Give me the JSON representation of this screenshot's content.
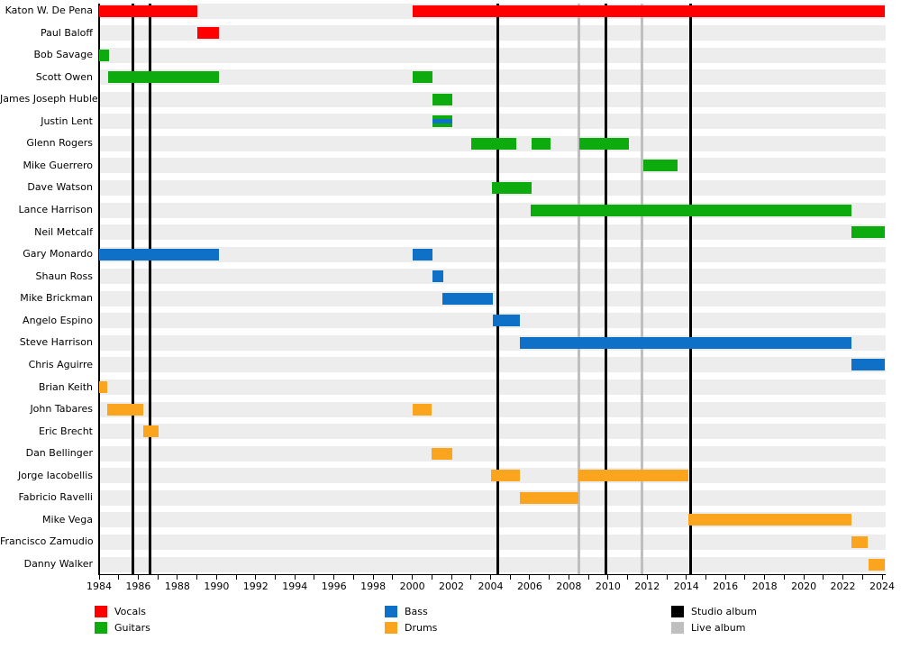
{
  "chart_data": {
    "type": "timeline",
    "title": "",
    "x_axis": {
      "start": 1984,
      "end": 2024.12,
      "tick_every_years": 1,
      "label_every_years": 2,
      "tick_labels": [
        "1984",
        "1986",
        "1988",
        "1990",
        "1992",
        "1994",
        "1996",
        "1998",
        "2000",
        "2002",
        "2004",
        "2006",
        "2008",
        "2010",
        "2012",
        "2014",
        "2016",
        "2018",
        "2020",
        "2022",
        "2024"
      ]
    },
    "colors": {
      "vocals": "#fe0000",
      "guitars": "#0dab0d",
      "bass": "#0f70c8",
      "drums": "#fba51f",
      "studio_album": "#000000",
      "live_album": "#bfbfbf",
      "row_band": "#ededed"
    },
    "legend": [
      {
        "label": "Vocals",
        "color_key": "vocals"
      },
      {
        "label": "Guitars",
        "color_key": "guitars"
      },
      {
        "label": "Bass",
        "color_key": "bass"
      },
      {
        "label": "Drums",
        "color_key": "drums"
      },
      {
        "label": "Studio album",
        "color_key": "studio_album"
      },
      {
        "label": "Live album",
        "color_key": "live_album"
      }
    ],
    "album_lines": {
      "studio": [
        1985.72,
        1986.58,
        2004.38,
        2009.9,
        2014.22
      ],
      "live": [
        2008.53,
        2011.72
      ]
    },
    "members": [
      {
        "name": "Katon W. De Pena",
        "roles": [
          "vocals"
        ],
        "bars": [
          [
            1984,
            1989
          ],
          [
            2000,
            2024.12
          ]
        ]
      },
      {
        "name": "Paul Baloff",
        "roles": [
          "vocals"
        ],
        "bars": [
          [
            1989,
            1990.1
          ]
        ]
      },
      {
        "name": "Bob Savage",
        "roles": [
          "guitars"
        ],
        "bars": [
          [
            1984,
            1984.5
          ]
        ]
      },
      {
        "name": "Scott Owen",
        "roles": [
          "guitars"
        ],
        "bars": [
          [
            1984.45,
            1990.1
          ],
          [
            2000,
            2001.05
          ]
        ]
      },
      {
        "name": "James Joseph Hubler",
        "roles": [
          "guitars"
        ],
        "bars": [
          [
            2001.05,
            2002.05
          ]
        ]
      },
      {
        "name": "Justin Lent",
        "roles": [
          "guitars",
          "bass"
        ],
        "bars": [
          [
            2001.05,
            2002.05
          ]
        ]
      },
      {
        "name": "Glenn Rogers",
        "roles": [
          "guitars"
        ],
        "bars": [
          [
            2003,
            2005.3
          ],
          [
            2006.1,
            2007.05
          ],
          [
            2008.55,
            2011.05
          ]
        ]
      },
      {
        "name": "Mike Guerrero",
        "roles": [
          "guitars"
        ],
        "bars": [
          [
            2011.8,
            2013.55
          ]
        ]
      },
      {
        "name": "Dave Watson",
        "roles": [
          "guitars"
        ],
        "bars": [
          [
            2004.05,
            2006.1
          ]
        ]
      },
      {
        "name": "Lance Harrison",
        "roles": [
          "guitars"
        ],
        "bars": [
          [
            2006.05,
            2022.45
          ]
        ]
      },
      {
        "name": "Neil Metcalf",
        "roles": [
          "guitars"
        ],
        "bars": [
          [
            2022.45,
            2024.12
          ]
        ]
      },
      {
        "name": "Gary Monardo",
        "roles": [
          "bass"
        ],
        "bars": [
          [
            1984,
            1990.1
          ],
          [
            2000,
            2001.05
          ]
        ]
      },
      {
        "name": "Shaun Ross",
        "roles": [
          "bass"
        ],
        "bars": [
          [
            2001.05,
            2001.6
          ]
        ]
      },
      {
        "name": "Mike Brickman",
        "roles": [
          "bass"
        ],
        "bars": [
          [
            2001.55,
            2004.1
          ]
        ]
      },
      {
        "name": "Angelo Espino",
        "roles": [
          "bass"
        ],
        "bars": [
          [
            2004.1,
            2005.5
          ]
        ]
      },
      {
        "name": "Steve Harrison",
        "roles": [
          "bass"
        ],
        "bars": [
          [
            2005.5,
            2022.45
          ]
        ]
      },
      {
        "name": "Chris Aguirre",
        "roles": [
          "bass"
        ],
        "bars": [
          [
            2022.45,
            2024.12
          ]
        ]
      },
      {
        "name": "Brian Keith",
        "roles": [
          "drums"
        ],
        "bars": [
          [
            1984,
            1984.4
          ]
        ]
      },
      {
        "name": "John Tabares",
        "roles": [
          "drums"
        ],
        "bars": [
          [
            1984.4,
            1986.25
          ],
          [
            2000,
            2001
          ]
        ]
      },
      {
        "name": "Eric Brecht",
        "roles": [
          "drums"
        ],
        "bars": [
          [
            1986.25,
            1987.05
          ]
        ]
      },
      {
        "name": "Dan Bellinger",
        "roles": [
          "drums"
        ],
        "bars": [
          [
            2001,
            2002.05
          ]
        ]
      },
      {
        "name": "Jorge Iacobellis",
        "roles": [
          "drums"
        ],
        "bars": [
          [
            2004,
            2005.5
          ],
          [
            2008.5,
            2014.1
          ]
        ]
      },
      {
        "name": "Fabricio Ravelli",
        "roles": [
          "drums"
        ],
        "bars": [
          [
            2005.5,
            2008.5
          ]
        ]
      },
      {
        "name": "Mike Vega",
        "roles": [
          "drums"
        ],
        "bars": [
          [
            2014.1,
            2022.45
          ]
        ]
      },
      {
        "name": "Francisco Zamudio",
        "roles": [
          "drums"
        ],
        "bars": [
          [
            2022.45,
            2023.25
          ]
        ]
      },
      {
        "name": "Danny Walker",
        "roles": [
          "drums"
        ],
        "bars": [
          [
            2023.3,
            2024.12
          ]
        ]
      }
    ]
  }
}
